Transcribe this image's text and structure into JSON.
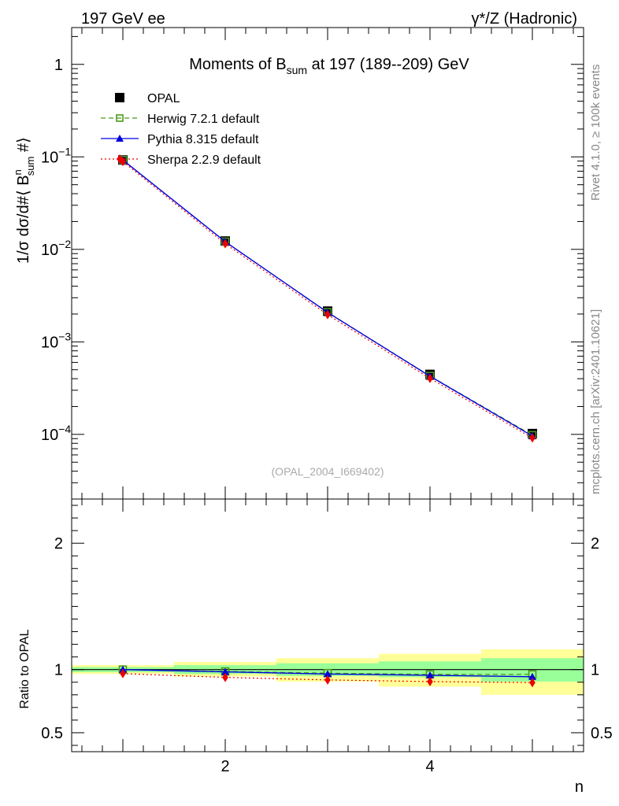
{
  "header": {
    "left": "197 GeV ee",
    "right": "γ*/Z (Hadronic)"
  },
  "side_text": {
    "rivet": "Rivet 4.1.0, ≥ 100k events",
    "mcplots": "mcplots.cern.ch [arXiv:2401.10621]"
  },
  "colors": {
    "opal": "#000000",
    "herwig": "#4a9a1a",
    "pythia": "#0000dd",
    "sherpa": "#ee0000",
    "band_inner": "#99ff99",
    "band_outer": "#ffff99"
  },
  "chart_data": [
    {
      "type": "line",
      "panel": "main",
      "title": "Moments of B_sum at 197 (189--209) GeV",
      "title_parts": {
        "pre": "Moments of B",
        "sub": "sum",
        "post": " at 197 (189--209) GeV"
      },
      "ylabel": "1/σ  dσ/d#⟨ B^n_sum #⟩",
      "ylabel_parts": {
        "a": "1/σ  dσ/d#⟨ B",
        "sup": "n",
        "sub": "sum",
        "b": " #⟩"
      },
      "yscale": "log",
      "ylim": [
        2e-05,
        2.5
      ],
      "xlim": [
        0.5,
        5.5
      ],
      "x": [
        1,
        2,
        3,
        4,
        5
      ],
      "yticks": [
        {
          "v": 1,
          "base": "1",
          "exp": ""
        },
        {
          "v": 0.1,
          "base": "10",
          "exp": "−1"
        },
        {
          "v": 0.01,
          "base": "10",
          "exp": "−2"
        },
        {
          "v": 0.001,
          "base": "10",
          "exp": "−3"
        },
        {
          "v": 0.0001,
          "base": "10",
          "exp": "−4"
        }
      ],
      "watermark": "(OPAL_2004_I669402)",
      "legend_position": "top-left",
      "series": [
        {
          "name": "OPAL",
          "key": "opal",
          "marker": "square-filled",
          "values": [
            0.0925,
            0.0123,
            0.00215,
            0.000445,
            0.000102
          ]
        },
        {
          "name": "Herwig 7.2.1 default",
          "key": "herwig",
          "marker": "square-open",
          "line": "dashed",
          "values": [
            0.0925,
            0.0121,
            0.00209,
            0.000428,
            9.8e-05
          ]
        },
        {
          "name": "Pythia 8.315 default",
          "key": "pythia",
          "marker": "triangle",
          "line": "solid",
          "values": [
            0.0925,
            0.0121,
            0.00208,
            0.000425,
            9.6e-05
          ]
        },
        {
          "name": "Sherpa 2.2.9 default",
          "key": "sherpa",
          "marker": "diamond",
          "line": "dotted",
          "values": [
            0.089,
            0.0115,
            0.00197,
            0.000403,
            9.15e-05
          ]
        }
      ]
    },
    {
      "type": "line",
      "panel": "ratio",
      "xlabel": "n",
      "ylabel": "Ratio to OPAL",
      "ylim": [
        0.35,
        2.35
      ],
      "xlim": [
        0.5,
        5.5
      ],
      "x": [
        1,
        2,
        3,
        4,
        5
      ],
      "xticks": [
        "2",
        "4"
      ],
      "xtick_values": [
        2,
        4
      ],
      "yticks": [
        "0.5",
        "1",
        "2"
      ],
      "ytick_values": [
        0.5,
        1,
        2
      ],
      "bands": {
        "edges": [
          0.5,
          1.5,
          2.5,
          3.5,
          4.5,
          5.5
        ],
        "inner": [
          [
            0.98,
            1.02
          ],
          [
            0.965,
            1.035
          ],
          [
            0.95,
            1.05
          ],
          [
            0.94,
            1.065
          ],
          [
            0.905,
            1.09
          ]
        ],
        "outer": [
          [
            0.965,
            1.035
          ],
          [
            0.945,
            1.06
          ],
          [
            0.905,
            1.09
          ],
          [
            0.865,
            1.125
          ],
          [
            0.8,
            1.16
          ]
        ]
      },
      "series": [
        {
          "name": "Herwig 7.2.1 default",
          "key": "herwig",
          "marker": "square-open",
          "line": "dashed",
          "values": [
            1.0,
            0.985,
            0.972,
            0.962,
            0.962
          ]
        },
        {
          "name": "Pythia 8.315 default",
          "key": "pythia",
          "marker": "triangle",
          "line": "solid",
          "values": [
            1.0,
            0.982,
            0.965,
            0.955,
            0.943
          ]
        },
        {
          "name": "Sherpa 2.2.9 default",
          "key": "sherpa",
          "marker": "diamond",
          "line": "dotted",
          "values": [
            0.968,
            0.938,
            0.918,
            0.905,
            0.897
          ]
        }
      ]
    }
  ]
}
